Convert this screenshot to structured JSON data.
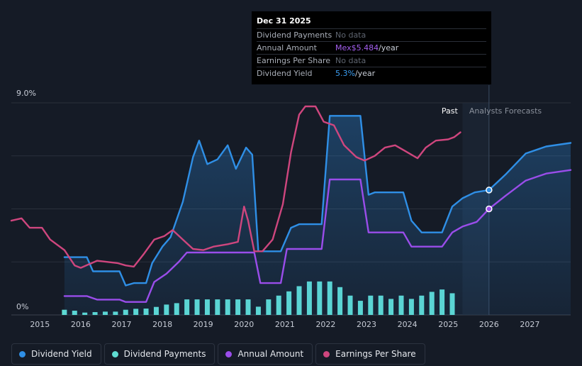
{
  "chart_data": {
    "type": "line",
    "title": "",
    "xlabel": "",
    "ylabel": "",
    "ylim": [
      0,
      9.0
    ],
    "xlim": [
      2014.3,
      2028.0
    ],
    "y_tick_labels": [
      "0%",
      "9.0%"
    ],
    "x_tick_labels": [
      "2015",
      "2016",
      "2017",
      "2018",
      "2019",
      "2020",
      "2021",
      "2022",
      "2023",
      "2024",
      "2025",
      "2026",
      "2027"
    ],
    "region_labels": {
      "past": "Past",
      "forecast": "Analysts Forecasts"
    },
    "past_end": 2025.35,
    "forecast_start": 2026.0,
    "tooltip": {
      "date": "Dec 31 2025",
      "rows": [
        {
          "label": "Dividend Payments",
          "value": "No data",
          "unit": ""
        },
        {
          "label": "Annual Amount",
          "value": "Mex$5.484",
          "unit": "/year"
        },
        {
          "label": "Earnings Per Share",
          "value": "No data",
          "unit": ""
        },
        {
          "label": "Dividend Yield",
          "value": "5.3%",
          "unit": "/year"
        }
      ]
    },
    "series": [
      {
        "name": "Dividend Yield",
        "color": "#2f8fe6",
        "kind": "line",
        "fill": true,
        "points": [
          [
            2015.6,
            2.45
          ],
          [
            2016.15,
            2.45
          ],
          [
            2016.3,
            1.85
          ],
          [
            2016.95,
            1.85
          ],
          [
            2017.1,
            1.25
          ],
          [
            2017.3,
            1.35
          ],
          [
            2017.6,
            1.35
          ],
          [
            2017.75,
            2.2
          ],
          [
            2018.0,
            2.9
          ],
          [
            2018.2,
            3.3
          ],
          [
            2018.5,
            4.8
          ],
          [
            2018.75,
            6.7
          ],
          [
            2018.9,
            7.4
          ],
          [
            2019.1,
            6.4
          ],
          [
            2019.35,
            6.6
          ],
          [
            2019.6,
            7.2
          ],
          [
            2019.8,
            6.2
          ],
          [
            2020.05,
            7.1
          ],
          [
            2020.2,
            6.8
          ],
          [
            2020.35,
            2.7
          ],
          [
            2020.6,
            2.7
          ],
          [
            2020.9,
            2.7
          ],
          [
            2021.15,
            3.7
          ],
          [
            2021.35,
            3.85
          ],
          [
            2021.9,
            3.85
          ],
          [
            2022.1,
            8.45
          ],
          [
            2022.4,
            8.45
          ],
          [
            2022.85,
            8.45
          ],
          [
            2023.05,
            5.1
          ],
          [
            2023.2,
            5.2
          ],
          [
            2023.4,
            5.2
          ],
          [
            2023.9,
            5.2
          ],
          [
            2024.1,
            4.0
          ],
          [
            2024.35,
            3.5
          ],
          [
            2024.85,
            3.5
          ],
          [
            2025.1,
            4.6
          ],
          [
            2025.35,
            4.95
          ],
          [
            2025.65,
            5.2
          ],
          [
            2026.0,
            5.3
          ],
          [
            2026.4,
            5.95
          ],
          [
            2026.9,
            6.85
          ],
          [
            2027.4,
            7.15
          ],
          [
            2028.0,
            7.3
          ]
        ]
      },
      {
        "name": "Annual Amount",
        "color": "#9a4dea",
        "kind": "line",
        "fill": false,
        "points": [
          [
            2015.6,
            0.8
          ],
          [
            2016.15,
            0.8
          ],
          [
            2016.4,
            0.65
          ],
          [
            2016.95,
            0.65
          ],
          [
            2017.1,
            0.55
          ],
          [
            2017.6,
            0.55
          ],
          [
            2017.8,
            1.4
          ],
          [
            2018.1,
            1.75
          ],
          [
            2018.4,
            2.25
          ],
          [
            2018.6,
            2.65
          ],
          [
            2019.0,
            2.65
          ],
          [
            2019.5,
            2.65
          ],
          [
            2020.0,
            2.65
          ],
          [
            2020.25,
            2.65
          ],
          [
            2020.4,
            1.35
          ],
          [
            2020.6,
            1.35
          ],
          [
            2020.9,
            1.35
          ],
          [
            2021.05,
            2.8
          ],
          [
            2021.4,
            2.8
          ],
          [
            2021.9,
            2.8
          ],
          [
            2022.1,
            5.75
          ],
          [
            2022.4,
            5.75
          ],
          [
            2022.85,
            5.75
          ],
          [
            2023.05,
            3.5
          ],
          [
            2023.35,
            3.5
          ],
          [
            2023.9,
            3.5
          ],
          [
            2024.1,
            2.9
          ],
          [
            2024.35,
            2.9
          ],
          [
            2024.85,
            2.9
          ],
          [
            2025.1,
            3.5
          ],
          [
            2025.35,
            3.75
          ],
          [
            2025.7,
            3.95
          ],
          [
            2026.0,
            4.5
          ],
          [
            2026.4,
            5.05
          ],
          [
            2026.9,
            5.7
          ],
          [
            2027.4,
            6.0
          ],
          [
            2028.0,
            6.15
          ]
        ]
      },
      {
        "name": "Earnings Per Share",
        "color": "#cf467e",
        "kind": "line",
        "fill": false,
        "points": [
          [
            2014.3,
            4.0
          ],
          [
            2014.55,
            4.1
          ],
          [
            2014.75,
            3.7
          ],
          [
            2015.05,
            3.7
          ],
          [
            2015.25,
            3.2
          ],
          [
            2015.6,
            2.75
          ],
          [
            2015.85,
            2.1
          ],
          [
            2016.0,
            2.0
          ],
          [
            2016.4,
            2.3
          ],
          [
            2016.9,
            2.2
          ],
          [
            2017.1,
            2.1
          ],
          [
            2017.3,
            2.05
          ],
          [
            2017.55,
            2.6
          ],
          [
            2017.8,
            3.2
          ],
          [
            2018.05,
            3.35
          ],
          [
            2018.25,
            3.6
          ],
          [
            2018.5,
            3.2
          ],
          [
            2018.75,
            2.8
          ],
          [
            2019.0,
            2.75
          ],
          [
            2019.25,
            2.9
          ],
          [
            2019.6,
            3.0
          ],
          [
            2019.85,
            3.1
          ],
          [
            2020.0,
            4.6
          ],
          [
            2020.1,
            4.0
          ],
          [
            2020.25,
            2.7
          ],
          [
            2020.45,
            2.7
          ],
          [
            2020.7,
            3.2
          ],
          [
            2020.95,
            4.7
          ],
          [
            2021.15,
            6.9
          ],
          [
            2021.35,
            8.5
          ],
          [
            2021.5,
            8.85
          ],
          [
            2021.75,
            8.85
          ],
          [
            2021.95,
            8.2
          ],
          [
            2022.2,
            8.05
          ],
          [
            2022.45,
            7.2
          ],
          [
            2022.75,
            6.7
          ],
          [
            2022.95,
            6.55
          ],
          [
            2023.2,
            6.75
          ],
          [
            2023.45,
            7.1
          ],
          [
            2023.7,
            7.2
          ],
          [
            2023.95,
            6.95
          ],
          [
            2024.25,
            6.65
          ],
          [
            2024.45,
            7.1
          ],
          [
            2024.7,
            7.4
          ],
          [
            2025.0,
            7.45
          ],
          [
            2025.15,
            7.55
          ],
          [
            2025.3,
            7.75
          ]
        ]
      },
      {
        "name": "Dividend Payments",
        "color": "#5fdcd2",
        "kind": "bar",
        "fill": false,
        "points": [
          [
            2015.6,
            0.22
          ],
          [
            2015.85,
            0.18
          ],
          [
            2016.1,
            0.1
          ],
          [
            2016.35,
            0.12
          ],
          [
            2016.6,
            0.14
          ],
          [
            2016.85,
            0.14
          ],
          [
            2017.1,
            0.22
          ],
          [
            2017.35,
            0.26
          ],
          [
            2017.6,
            0.27
          ],
          [
            2017.85,
            0.34
          ],
          [
            2018.1,
            0.44
          ],
          [
            2018.35,
            0.5
          ],
          [
            2018.6,
            0.66
          ],
          [
            2018.85,
            0.66
          ],
          [
            2019.1,
            0.66
          ],
          [
            2019.35,
            0.66
          ],
          [
            2019.6,
            0.66
          ],
          [
            2019.85,
            0.66
          ],
          [
            2020.1,
            0.66
          ],
          [
            2020.35,
            0.35
          ],
          [
            2020.6,
            0.66
          ],
          [
            2020.85,
            0.82
          ],
          [
            2021.1,
            1.0
          ],
          [
            2021.35,
            1.22
          ],
          [
            2021.6,
            1.42
          ],
          [
            2021.85,
            1.42
          ],
          [
            2022.1,
            1.42
          ],
          [
            2022.35,
            1.18
          ],
          [
            2022.6,
            0.82
          ],
          [
            2022.85,
            0.6
          ],
          [
            2023.1,
            0.82
          ],
          [
            2023.35,
            0.82
          ],
          [
            2023.6,
            0.68
          ],
          [
            2023.85,
            0.82
          ],
          [
            2024.1,
            0.68
          ],
          [
            2024.35,
            0.82
          ],
          [
            2024.6,
            0.98
          ],
          [
            2024.85,
            1.08
          ],
          [
            2025.1,
            0.92
          ]
        ]
      }
    ],
    "legend": [
      {
        "name": "Dividend Yield",
        "color": "#2f8fe6"
      },
      {
        "name": "Dividend Payments",
        "color": "#5fdcd2"
      },
      {
        "name": "Annual Amount",
        "color": "#9a4dea"
      },
      {
        "name": "Earnings Per Share",
        "color": "#cf467e"
      }
    ]
  }
}
